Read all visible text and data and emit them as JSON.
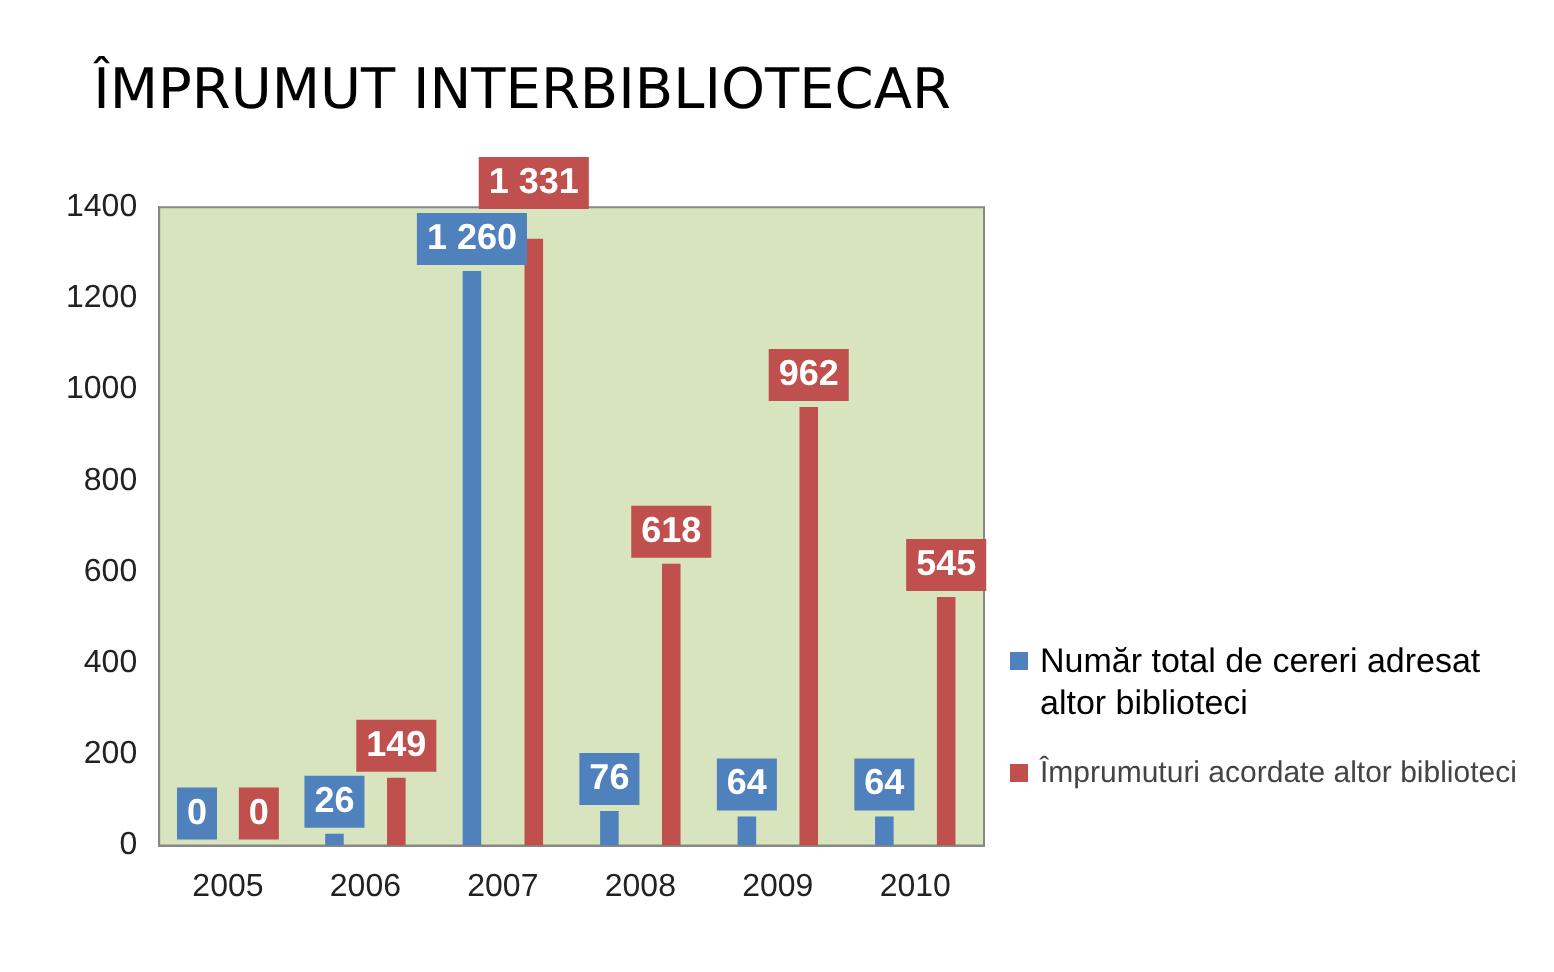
{
  "chart_data": {
    "type": "bar",
    "title": "ÎMPRUMUT INTERBIBLIOTECAR",
    "categories": [
      "2005",
      "2006",
      "2007",
      "2008",
      "2009",
      "2010"
    ],
    "series": [
      {
        "name": "Număr total de cereri adresat altor biblioteci",
        "color": "#4f81bd",
        "values": [
          0,
          26,
          1260,
          76,
          64,
          64
        ],
        "value_labels": [
          "0",
          "26",
          "1 260",
          "76",
          "64",
          "64"
        ]
      },
      {
        "name": "Împrumuturi acordate altor biblioteci",
        "color": "#c0504d",
        "values": [
          0,
          149,
          1331,
          618,
          962,
          545
        ],
        "value_labels": [
          "0",
          "149",
          "1 331",
          "618",
          "962",
          "545"
        ]
      }
    ],
    "ylim": [
      0,
      1400
    ],
    "yticks": [
      0,
      200,
      400,
      600,
      800,
      1000,
      1200,
      1400
    ],
    "grid": false,
    "legend": "right"
  }
}
